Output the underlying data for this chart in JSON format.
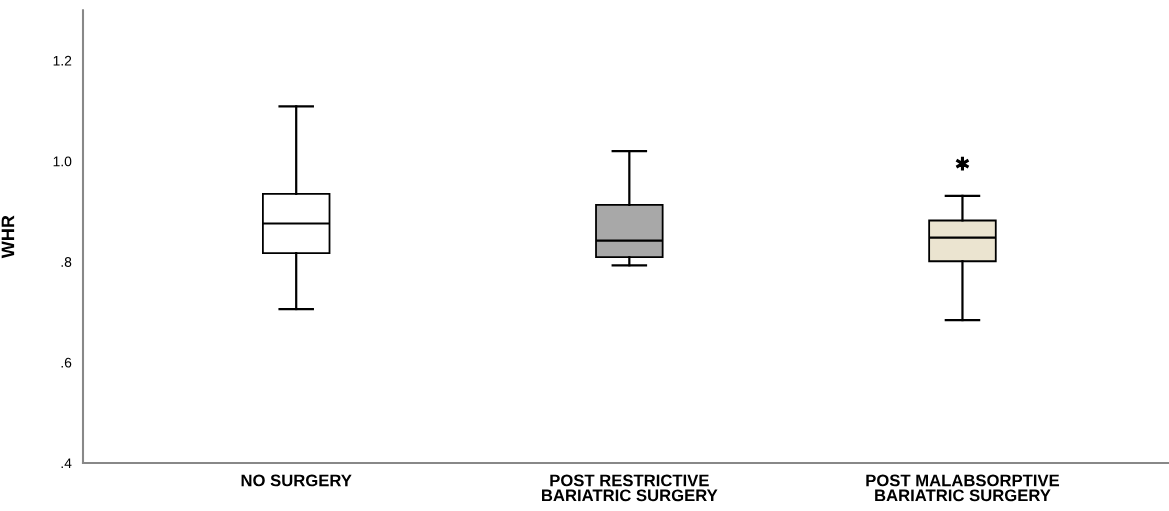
{
  "chart_data": {
    "type": "box",
    "ylabel": "WHR",
    "categories": [
      "NO SURGERY",
      "POST RESTRICTIVE\nBARIATRIC SURGERY",
      "POST MALABSORPTIVE\nBARIATRIC SURGERY"
    ],
    "boxes": [
      {
        "low": 0.706,
        "q1": 0.817,
        "median": 0.876,
        "q3": 0.935,
        "high": 1.109
      },
      {
        "low": 0.793,
        "q1": 0.809,
        "median": 0.842,
        "q3": 0.913,
        "high": 1.02
      },
      {
        "low": 0.684,
        "q1": 0.801,
        "median": 0.848,
        "q3": 0.882,
        "high": 0.931,
        "outliers": [
          0.995
        ]
      }
    ],
    "colors": [
      "#ffffff",
      "#a8a8a8",
      "#ebe4d0"
    ],
    "ylim": [
      0.4,
      1.3
    ],
    "yticks": [
      {
        "value": 0.4,
        "label": ".4"
      },
      {
        "value": 0.6,
        "label": ".6"
      },
      {
        "value": 0.8,
        "label": ".8"
      },
      {
        "value": 1.0,
        "label": "1.0"
      },
      {
        "value": 1.2,
        "label": "1.2"
      }
    ],
    "grid": false,
    "legend": false
  }
}
